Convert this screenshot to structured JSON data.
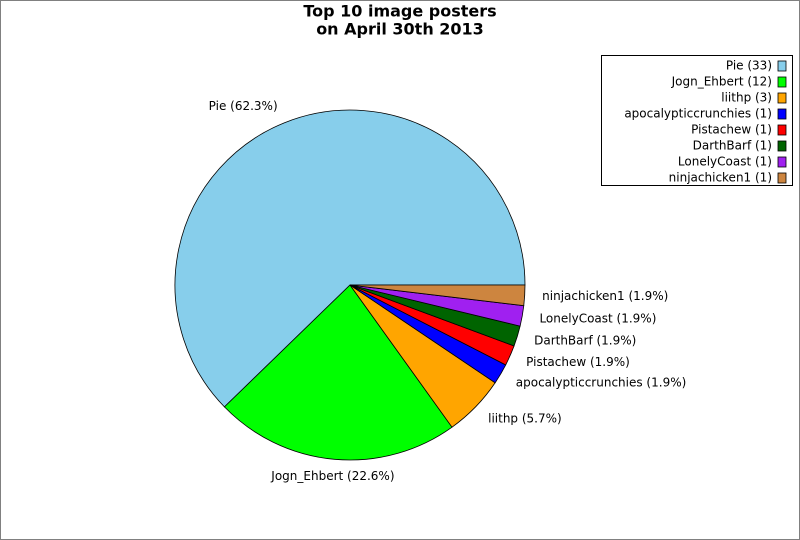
{
  "chart_data": {
    "type": "pie",
    "title": [
      "Top 10 image posters",
      "on April 30th 2013"
    ],
    "categories": [
      "Pie",
      "Jogn_Ehbert",
      "liithp",
      "apocalypticcrunchies",
      "Pistachew",
      "DarthBarf",
      "LonelyCoast",
      "ninjachicken1"
    ],
    "values": [
      33,
      12,
      3,
      1,
      1,
      1,
      1,
      1
    ],
    "legend_labels": [
      "Pie (33)",
      "Jogn_Ehbert (12)",
      "liithp (3)",
      "apocalypticcrunchies (1)",
      "Pistachew (1)",
      "DarthBarf (1)",
      "LonelyCoast (1)",
      "ninjachicken1 (1)"
    ],
    "slice_labels": [
      "Pie (62.3%)",
      "Jogn_Ehbert (22.6%)",
      "liithp (5.7%)",
      "apocalypticcrunchies (1.9%)",
      "Pistachew (1.9%)",
      "DarthBarf (1.9%)",
      "LonelyCoast (1.9%)",
      "ninjachicken1 (1.9%)"
    ],
    "colors": [
      "#87ceeb",
      "#00ff00",
      "#ffa500",
      "#0000ff",
      "#ff0000",
      "#006400",
      "#a020f0",
      "#cd853f"
    ],
    "legend": "upper right"
  }
}
